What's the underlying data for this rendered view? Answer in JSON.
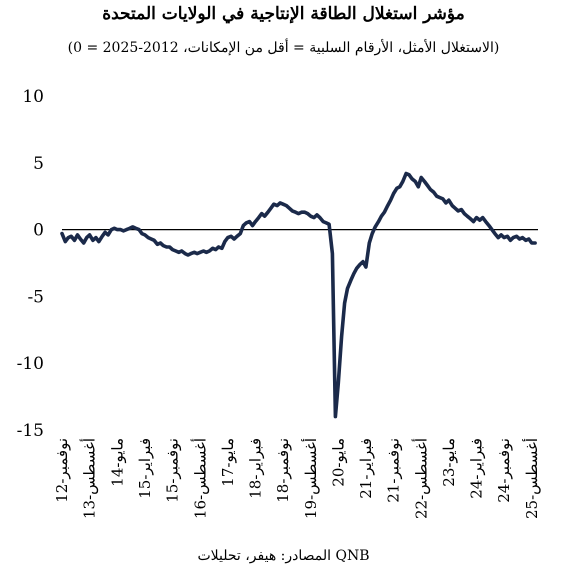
{
  "title": "مؤشر استغلال الطاقة الإنتاجية في الولايات المتحدة",
  "subtitle": "(0 = الاستغلال الأمثل، الأرقام السلبية = أقل من الإمكانات، 2012-2025)",
  "source": "المصادر: هيفر، تحليلات QNB",
  "chart_data": {
    "type": "line",
    "ylim": [
      -15,
      10
    ],
    "yticks": [
      10,
      5,
      0,
      -5,
      -10,
      -15
    ],
    "xlim": [
      2012.83,
      2025.75
    ],
    "xticks": [
      {
        "t": 2012.833,
        "label": "نوفمبر-12"
      },
      {
        "t": 2013.583,
        "label": "أغسطس-13"
      },
      {
        "t": 2014.333,
        "label": "مايو-14"
      },
      {
        "t": 2015.083,
        "label": "فبراير-15"
      },
      {
        "t": 2015.833,
        "label": "نوفمبر-15"
      },
      {
        "t": 2016.583,
        "label": "أغسطس-16"
      },
      {
        "t": 2017.333,
        "label": "مايو-17"
      },
      {
        "t": 2018.083,
        "label": "فبراير-18"
      },
      {
        "t": 2018.833,
        "label": "نوفمبر-18"
      },
      {
        "t": 2019.583,
        "label": "أغسطس-19"
      },
      {
        "t": 2020.333,
        "label": "مايو-20"
      },
      {
        "t": 2021.083,
        "label": "فبراير-21"
      },
      {
        "t": 2021.833,
        "label": "نوفمبر-21"
      },
      {
        "t": 2022.583,
        "label": "أغسطس-22"
      },
      {
        "t": 2023.333,
        "label": "مايو-23"
      },
      {
        "t": 2024.083,
        "label": "فبراير-24"
      },
      {
        "t": 2024.833,
        "label": "نوفمبر-24"
      },
      {
        "t": 2025.583,
        "label": "أغسطس-25"
      }
    ],
    "reference_line": 0,
    "grid": false,
    "legend": "none",
    "series": [
      {
        "color": "#1b2a4a",
        "points": [
          [
            2012.83,
            -0.3
          ],
          [
            2012.92,
            -0.9
          ],
          [
            2013.0,
            -0.6
          ],
          [
            2013.08,
            -0.5
          ],
          [
            2013.17,
            -0.8
          ],
          [
            2013.25,
            -0.4
          ],
          [
            2013.33,
            -0.7
          ],
          [
            2013.42,
            -1.0
          ],
          [
            2013.5,
            -0.6
          ],
          [
            2013.58,
            -0.4
          ],
          [
            2013.67,
            -0.8
          ],
          [
            2013.75,
            -0.6
          ],
          [
            2013.83,
            -0.9
          ],
          [
            2013.92,
            -0.5
          ],
          [
            2014.0,
            -0.2
          ],
          [
            2014.08,
            -0.4
          ],
          [
            2014.17,
            0.0
          ],
          [
            2014.25,
            0.1
          ],
          [
            2014.33,
            0.0
          ],
          [
            2014.42,
            0.0
          ],
          [
            2014.5,
            -0.1
          ],
          [
            2014.58,
            0.0
          ],
          [
            2014.67,
            0.1
          ],
          [
            2014.75,
            0.2
          ],
          [
            2014.83,
            0.1
          ],
          [
            2014.92,
            0.0
          ],
          [
            2015.0,
            -0.3
          ],
          [
            2015.08,
            -0.4
          ],
          [
            2015.17,
            -0.6
          ],
          [
            2015.25,
            -0.7
          ],
          [
            2015.33,
            -0.8
          ],
          [
            2015.42,
            -1.1
          ],
          [
            2015.5,
            -1.0
          ],
          [
            2015.58,
            -1.2
          ],
          [
            2015.67,
            -1.3
          ],
          [
            2015.75,
            -1.3
          ],
          [
            2015.83,
            -1.5
          ],
          [
            2015.92,
            -1.6
          ],
          [
            2016.0,
            -1.7
          ],
          [
            2016.08,
            -1.6
          ],
          [
            2016.17,
            -1.8
          ],
          [
            2016.25,
            -1.9
          ],
          [
            2016.33,
            -1.8
          ],
          [
            2016.42,
            -1.7
          ],
          [
            2016.5,
            -1.8
          ],
          [
            2016.58,
            -1.7
          ],
          [
            2016.67,
            -1.6
          ],
          [
            2016.75,
            -1.7
          ],
          [
            2016.83,
            -1.6
          ],
          [
            2016.92,
            -1.4
          ],
          [
            2017.0,
            -1.5
          ],
          [
            2017.08,
            -1.3
          ],
          [
            2017.17,
            -1.4
          ],
          [
            2017.25,
            -0.9
          ],
          [
            2017.33,
            -0.6
          ],
          [
            2017.42,
            -0.5
          ],
          [
            2017.5,
            -0.7
          ],
          [
            2017.58,
            -0.5
          ],
          [
            2017.67,
            -0.3
          ],
          [
            2017.75,
            0.3
          ],
          [
            2017.83,
            0.5
          ],
          [
            2017.92,
            0.6
          ],
          [
            2018.0,
            0.3
          ],
          [
            2018.08,
            0.6
          ],
          [
            2018.17,
            0.9
          ],
          [
            2018.25,
            1.2
          ],
          [
            2018.33,
            1.0
          ],
          [
            2018.42,
            1.3
          ],
          [
            2018.5,
            1.6
          ],
          [
            2018.58,
            1.9
          ],
          [
            2018.67,
            1.8
          ],
          [
            2018.75,
            2.0
          ],
          [
            2018.83,
            1.9
          ],
          [
            2018.92,
            1.8
          ],
          [
            2019.0,
            1.6
          ],
          [
            2019.08,
            1.4
          ],
          [
            2019.17,
            1.3
          ],
          [
            2019.25,
            1.2
          ],
          [
            2019.33,
            1.3
          ],
          [
            2019.42,
            1.3
          ],
          [
            2019.5,
            1.2
          ],
          [
            2019.58,
            1.0
          ],
          [
            2019.67,
            0.9
          ],
          [
            2019.75,
            1.1
          ],
          [
            2019.83,
            0.9
          ],
          [
            2019.92,
            0.6
          ],
          [
            2020.0,
            0.5
          ],
          [
            2020.08,
            0.4
          ],
          [
            2020.17,
            -1.8
          ],
          [
            2020.25,
            -14.0
          ],
          [
            2020.33,
            -11.5
          ],
          [
            2020.42,
            -8.0
          ],
          [
            2020.5,
            -5.5
          ],
          [
            2020.58,
            -4.4
          ],
          [
            2020.67,
            -3.8
          ],
          [
            2020.75,
            -3.3
          ],
          [
            2020.83,
            -2.9
          ],
          [
            2020.92,
            -2.6
          ],
          [
            2021.0,
            -2.4
          ],
          [
            2021.08,
            -2.8
          ],
          [
            2021.17,
            -1.0
          ],
          [
            2021.25,
            -0.3
          ],
          [
            2021.33,
            0.2
          ],
          [
            2021.42,
            0.6
          ],
          [
            2021.5,
            1.0
          ],
          [
            2021.58,
            1.3
          ],
          [
            2021.67,
            1.8
          ],
          [
            2021.75,
            2.2
          ],
          [
            2021.83,
            2.7
          ],
          [
            2021.92,
            3.1
          ],
          [
            2022.0,
            3.2
          ],
          [
            2022.08,
            3.6
          ],
          [
            2022.17,
            4.2
          ],
          [
            2022.25,
            4.1
          ],
          [
            2022.33,
            3.8
          ],
          [
            2022.42,
            3.6
          ],
          [
            2022.5,
            3.2
          ],
          [
            2022.58,
            3.9
          ],
          [
            2022.67,
            3.6
          ],
          [
            2022.75,
            3.3
          ],
          [
            2022.83,
            3.0
          ],
          [
            2022.92,
            2.8
          ],
          [
            2023.0,
            2.5
          ],
          [
            2023.08,
            2.4
          ],
          [
            2023.17,
            2.3
          ],
          [
            2023.25,
            2.0
          ],
          [
            2023.33,
            2.2
          ],
          [
            2023.42,
            1.8
          ],
          [
            2023.5,
            1.6
          ],
          [
            2023.58,
            1.4
          ],
          [
            2023.67,
            1.5
          ],
          [
            2023.75,
            1.2
          ],
          [
            2023.83,
            1.0
          ],
          [
            2023.92,
            0.8
          ],
          [
            2024.0,
            0.6
          ],
          [
            2024.08,
            0.9
          ],
          [
            2024.17,
            0.7
          ],
          [
            2024.25,
            0.9
          ],
          [
            2024.33,
            0.6
          ],
          [
            2024.42,
            0.3
          ],
          [
            2024.5,
            0.0
          ],
          [
            2024.58,
            -0.3
          ],
          [
            2024.67,
            -0.6
          ],
          [
            2024.75,
            -0.4
          ],
          [
            2024.83,
            -0.6
          ],
          [
            2024.92,
            -0.5
          ],
          [
            2025.0,
            -0.8
          ],
          [
            2025.08,
            -0.6
          ],
          [
            2025.17,
            -0.5
          ],
          [
            2025.25,
            -0.7
          ],
          [
            2025.33,
            -0.6
          ],
          [
            2025.42,
            -0.8
          ],
          [
            2025.5,
            -0.7
          ],
          [
            2025.58,
            -1.0
          ],
          [
            2025.67,
            -1.0
          ]
        ]
      }
    ]
  }
}
